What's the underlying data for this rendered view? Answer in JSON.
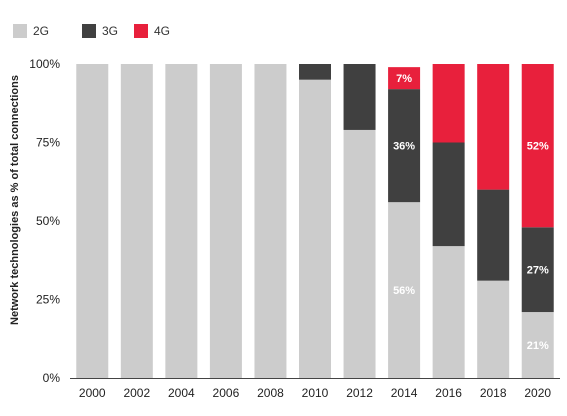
{
  "chart_data": {
    "type": "bar",
    "stacked": true,
    "title": "",
    "xlabel": "",
    "ylabel": "Network technologies as % of total connections",
    "categories": [
      "2000",
      "2002",
      "2004",
      "2006",
      "2008",
      "2010",
      "2012",
      "2014",
      "2016",
      "2018",
      "2020"
    ],
    "series": [
      {
        "name": "2G",
        "color": "#cccccc",
        "values": [
          100,
          100,
          100,
          100,
          100,
          95,
          79,
          56,
          42,
          31,
          21
        ]
      },
      {
        "name": "3G",
        "color": "#404040",
        "values": [
          0,
          0,
          0,
          0,
          0,
          5,
          21,
          36,
          33,
          29,
          27
        ]
      },
      {
        "name": "4G",
        "color": "#e8203c",
        "values": [
          0,
          0,
          0,
          0,
          0,
          0,
          0,
          7,
          25,
          40,
          52
        ]
      }
    ],
    "y_ticks": [
      "0%",
      "25%",
      "50%",
      "75%",
      "100%"
    ],
    "ylim": [
      0,
      100
    ],
    "grid": false,
    "legend_position": "top-left",
    "data_labels": [
      {
        "category": "2014",
        "series": "4G",
        "text": "7%"
      },
      {
        "category": "2014",
        "series": "3G",
        "text": "36%"
      },
      {
        "category": "2014",
        "series": "2G",
        "text": "56%"
      },
      {
        "category": "2020",
        "series": "4G",
        "text": "52%"
      },
      {
        "category": "2020",
        "series": "3G",
        "text": "27%"
      },
      {
        "category": "2020",
        "series": "2G",
        "text": "21%"
      }
    ]
  }
}
